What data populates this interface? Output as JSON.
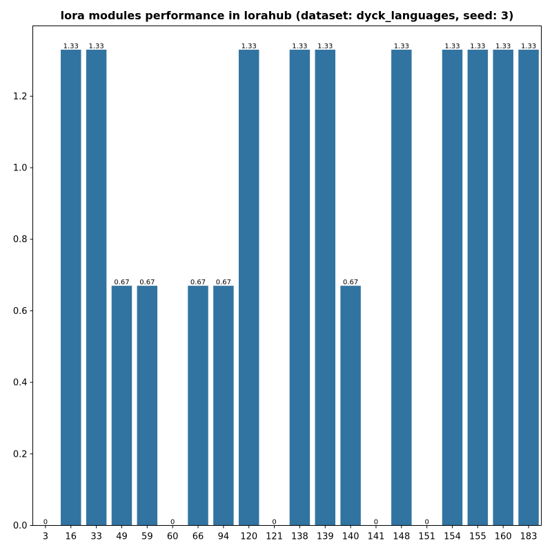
{
  "chart_data": {
    "type": "bar",
    "title": "lora modules performance in lorahub (dataset: dyck_languages, seed: 3)",
    "xlabel": "",
    "ylabel": "",
    "categories": [
      "3",
      "16",
      "33",
      "49",
      "59",
      "60",
      "66",
      "94",
      "120",
      "121",
      "138",
      "139",
      "140",
      "141",
      "148",
      "151",
      "154",
      "155",
      "160",
      "183"
    ],
    "values": [
      0,
      1.33,
      1.33,
      0.67,
      0.67,
      0,
      0.67,
      0.67,
      1.33,
      0,
      1.33,
      1.33,
      0.67,
      0,
      1.33,
      0,
      1.33,
      1.33,
      1.33,
      1.33
    ],
    "data_labels": [
      "0",
      "1.33",
      "1.33",
      "0.67",
      "0.67",
      "0",
      "0.67",
      "0.67",
      "1.33",
      "0",
      "1.33",
      "1.33",
      "0.67",
      "0",
      "1.33",
      "0",
      "1.33",
      "1.33",
      "1.33",
      "1.33"
    ],
    "ylim": [
      0,
      1.3965
    ],
    "yticks": [
      0.0,
      0.2,
      0.4,
      0.6,
      0.8,
      1.0,
      1.2
    ],
    "ytick_labels": [
      "0.0",
      "0.2",
      "0.4",
      "0.6",
      "0.8",
      "1.0",
      "1.2"
    ],
    "bar_color": "#3274a1",
    "grid": false,
    "legend": false
  }
}
